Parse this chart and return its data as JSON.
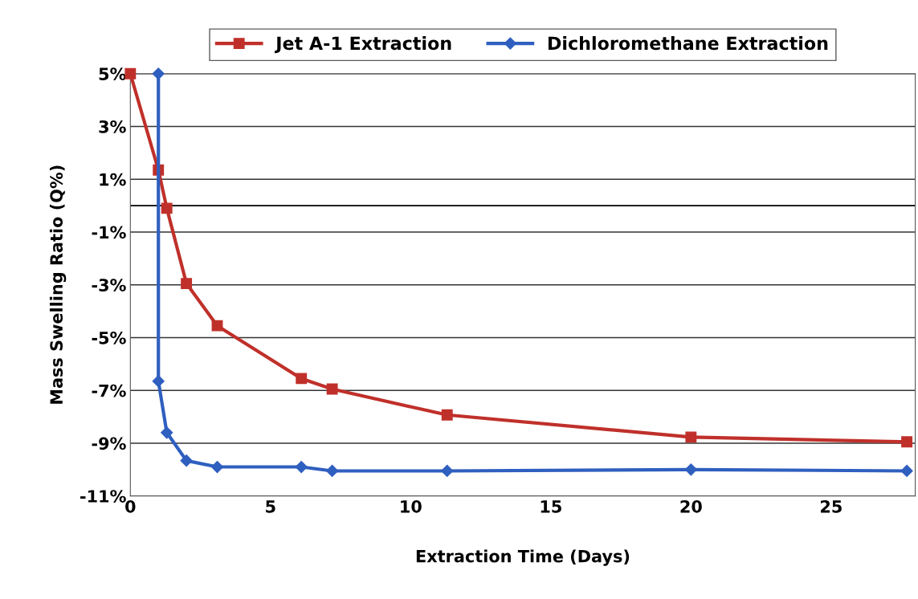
{
  "chart_data": {
    "type": "line",
    "xlabel": "Extraction Time (Days)",
    "ylabel": "Mass Swelling Ratio (Q%)",
    "xlim": [
      0,
      28
    ],
    "xticks": [
      0,
      5,
      10,
      15,
      20,
      25
    ],
    "ylim": [
      -11,
      5
    ],
    "yticks": [
      {
        "value": 5,
        "label": "5%"
      },
      {
        "value": 3,
        "label": "3%"
      },
      {
        "value": 1,
        "label": "1%"
      },
      {
        "value": -1,
        "label": "-1%"
      },
      {
        "value": -3,
        "label": "-3%"
      },
      {
        "value": -5,
        "label": "-5%"
      },
      {
        "value": -7,
        "label": "-7%"
      },
      {
        "value": -9,
        "label": "-9%"
      },
      {
        "value": -11,
        "label": "-11%"
      }
    ],
    "grid": "y",
    "legend": "top",
    "line_style": "solid",
    "ref_lines": [
      {
        "axis": "y",
        "value": 0,
        "color": "#000000"
      }
    ],
    "series": [
      {
        "name": "Jet A-1 Extraction",
        "color": "#c0302a",
        "marker": "square",
        "x": [
          0,
          1.0,
          1.3,
          2.0,
          3.1,
          6.1,
          7.2,
          11.3,
          20.0,
          27.7
        ],
        "values": [
          5.0,
          1.35,
          -0.1,
          -2.95,
          -4.55,
          -6.55,
          -6.95,
          -7.93,
          -8.77,
          -8.95
        ]
      },
      {
        "name": "Dichloromethane Extraction",
        "color": "#2f5fbf",
        "marker": "diamond",
        "x": [
          1.0,
          1.0,
          1.3,
          2.0,
          3.1,
          6.1,
          7.2,
          11.3,
          20.0,
          27.7
        ],
        "values": [
          5.0,
          -6.65,
          -8.6,
          -9.66,
          -9.9,
          -9.9,
          -10.05,
          -10.05,
          -10.0,
          -10.05
        ]
      }
    ]
  }
}
